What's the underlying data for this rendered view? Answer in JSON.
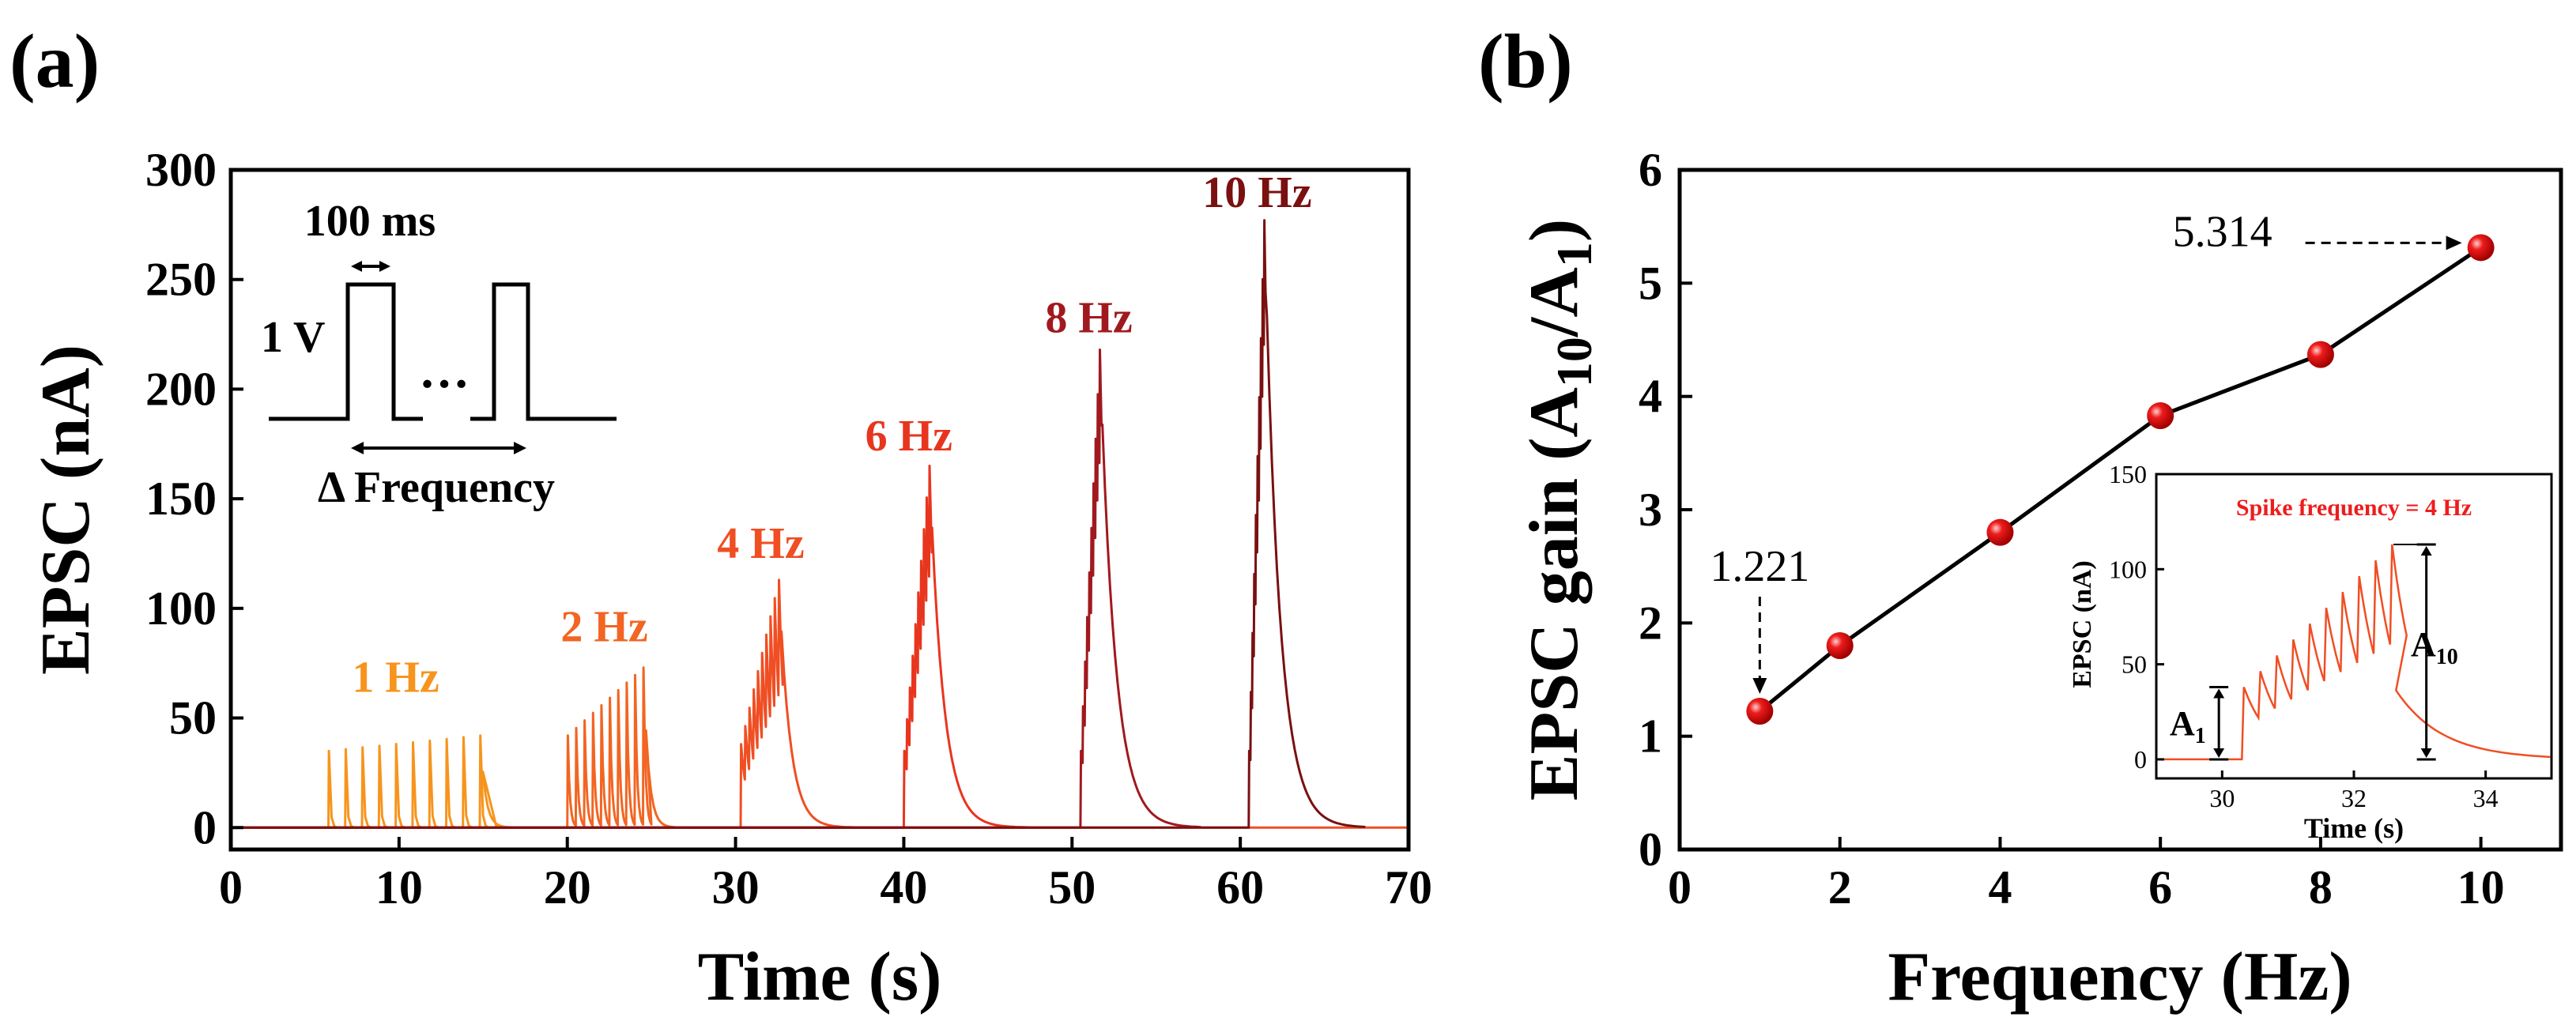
{
  "figure": {
    "panel_a_label": "(a)",
    "panel_b_label": "(b)"
  },
  "colors": {
    "f1": "#F7941D",
    "f2": "#F26522",
    "f4": "#F04E23",
    "f6": "#E8351E",
    "f8": "#A0191E",
    "f10": "#7A1010",
    "marker": "#EE1C1C",
    "line": "#000000",
    "inset_trace": "#F04E23",
    "inset_label": "#EE1C1C"
  },
  "chart_data": [
    {
      "id": "a",
      "type": "line",
      "xlabel": "Time (s)",
      "ylabel": "EPSC (nA)",
      "xlim": [
        0,
        70
      ],
      "ylim": [
        -10,
        300
      ],
      "xticks": [
        0,
        10,
        20,
        30,
        40,
        50,
        60,
        70
      ],
      "yticks": [
        0,
        50,
        100,
        150,
        200,
        250,
        300
      ],
      "series": [
        {
          "name": "1 Hz",
          "label": "1 Hz",
          "color_key": "f1",
          "freq_hz": 1,
          "start_s": 5.8,
          "spike_count": 10,
          "first_peak_na": 35,
          "last_peak_na": 42,
          "decay_tau_s": 0.08,
          "label_at": [
            9.8,
            62
          ]
        },
        {
          "name": "2 Hz",
          "label": "2 Hz",
          "color_key": "f2",
          "freq_hz": 2,
          "start_s": 20.0,
          "spike_count": 10,
          "first_peak_na": 42,
          "last_peak_na": 73,
          "decay_tau_s": 0.12,
          "label_at": [
            22.2,
            85
          ]
        },
        {
          "name": "4 Hz",
          "label": "4 Hz",
          "color_key": "f4",
          "freq_hz": 4,
          "start_s": 30.3,
          "spike_count": 10,
          "first_peak_na": 38,
          "last_peak_na": 113,
          "decay_tau_s": 0.4,
          "label_at": [
            31.5,
            123
          ]
        },
        {
          "name": "6 Hz",
          "label": "6 Hz",
          "color_key": "f6",
          "freq_hz": 6,
          "start_s": 40.0,
          "spike_count": 10,
          "first_peak_na": 35,
          "last_peak_na": 165,
          "decay_tau_s": 0.5,
          "label_at": [
            40.3,
            172
          ]
        },
        {
          "name": "8 Hz",
          "label": "8 Hz",
          "color_key": "f8",
          "freq_hz": 8,
          "start_s": 50.5,
          "spike_count": 10,
          "first_peak_na": 35,
          "last_peak_na": 218,
          "decay_tau_s": 0.55,
          "label_at": [
            51.0,
            226
          ]
        },
        {
          "name": "10 Hz",
          "label": "10 Hz",
          "color_key": "f10",
          "freq_hz": 10,
          "start_s": 60.5,
          "spike_count": 10,
          "first_peak_na": 35,
          "last_peak_na": 277,
          "decay_tau_s": 0.55,
          "label_at": [
            61.0,
            283
          ]
        }
      ],
      "pulse_schematic": {
        "amplitude_label": "1 V",
        "width_label": "100 ms",
        "ellipsis": "…",
        "interval_label": "Δ Frequency"
      }
    },
    {
      "id": "b",
      "type": "line",
      "xlabel": "Frequency (Hz)",
      "ylabel_main": "EPSC gain (A",
      "ylabel_sub1": "10",
      "ylabel_mid": "/A",
      "ylabel_sub2": "1",
      "ylabel_end": ")",
      "xlim": [
        0,
        11
      ],
      "ylim": [
        0,
        6
      ],
      "xticks": [
        0,
        2,
        4,
        6,
        8,
        10
      ],
      "yticks": [
        0,
        1,
        2,
        3,
        4,
        5,
        6
      ],
      "x": [
        1,
        2,
        4,
        6,
        8,
        10
      ],
      "y": [
        1.221,
        1.8,
        2.8,
        3.83,
        4.37,
        5.314
      ],
      "annotations": [
        {
          "text": "1.221",
          "point_index": 0
        },
        {
          "text": "5.314",
          "point_index": 5
        }
      ],
      "inset": {
        "type": "line",
        "title": "Spike frequency = 4 Hz",
        "xlabel": "Time (s)",
        "ylabel": "EPSC (nA)",
        "xlim": [
          29,
          35
        ],
        "ylim": [
          -10,
          150
        ],
        "xticks": [
          30,
          32,
          34
        ],
        "yticks": [
          0,
          50,
          100,
          150
        ],
        "A1_main": "A",
        "A1_sub": "1",
        "A10_main": "A",
        "A10_sub": "10",
        "A1_value_na": 38,
        "A10_value_na": 113,
        "start_s": 30.3,
        "freq_hz": 4,
        "spike_count": 10
      }
    }
  ]
}
